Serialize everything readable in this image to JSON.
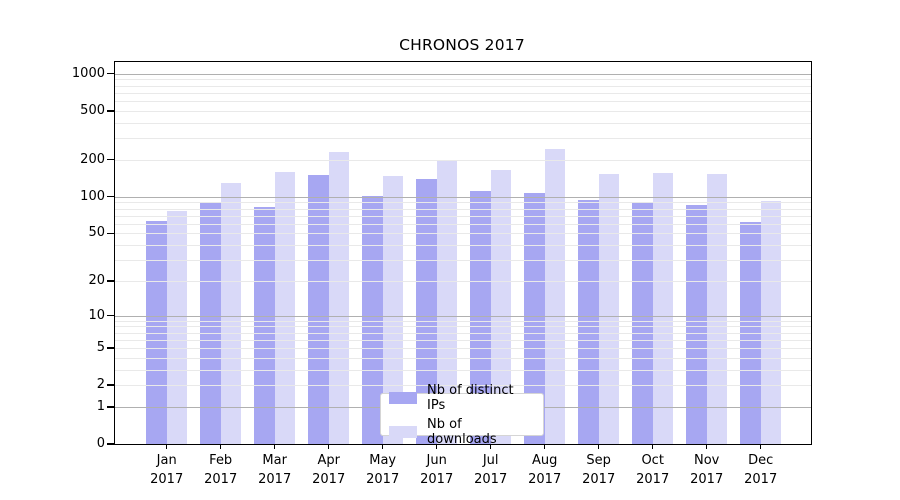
{
  "chart_data": {
    "type": "bar",
    "title": "CHRONOS 2017",
    "categories": [
      "Jan",
      "Feb",
      "Mar",
      "Apr",
      "May",
      "Jun",
      "Jul",
      "Aug",
      "Sep",
      "Oct",
      "Nov",
      "Dec"
    ],
    "x_year": "2017",
    "series": [
      {
        "id": "distinct-ips",
        "name": "Nb of distinct IPs",
        "color": "#a7a7f2",
        "values": [
          63,
          88,
          83,
          151,
          102,
          139,
          111,
          108,
          94,
          89,
          85,
          62
        ]
      },
      {
        "id": "downloads",
        "name": "Nb of downloads",
        "color": "#d9d9f8",
        "values": [
          76,
          129,
          159,
          233,
          148,
          196,
          165,
          247,
          152,
          157,
          154,
          92
        ]
      }
    ],
    "yscale": "log(value+1)",
    "ylim": [
      0,
      1246
    ],
    "yticks": [
      0,
      1,
      2,
      5,
      10,
      20,
      50,
      100,
      200,
      500,
      1000
    ],
    "y_major_gridlines": [
      1,
      10,
      100,
      1000
    ],
    "y_minor_gridlines": [
      2,
      3,
      4,
      5,
      6,
      7,
      8,
      9,
      20,
      30,
      40,
      50,
      60,
      70,
      80,
      90,
      200,
      300,
      400,
      500,
      600,
      700,
      800,
      900
    ],
    "grid_major_color": "#b0b0b0",
    "grid_minor_color": "#e9e9e9",
    "legend_position": "inside-bottom-center",
    "grid": "horizontal only, drawn above bars"
  }
}
